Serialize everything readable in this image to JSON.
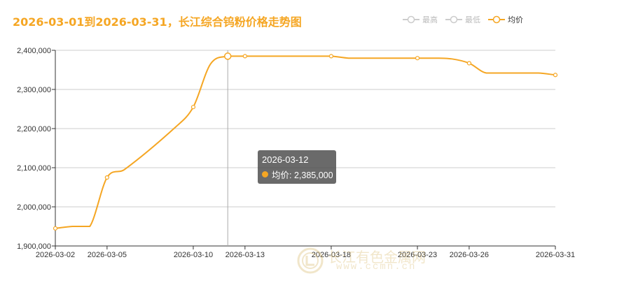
{
  "title": "2026-03-01到2026-03-31，长江综合钨粉价格走势图",
  "legend": [
    {
      "label": "最高",
      "icon": "legend-line-circle-icon",
      "color": "#cccccc",
      "active": false
    },
    {
      "label": "最低",
      "icon": "legend-line-circle-icon",
      "color": "#cccccc",
      "active": false
    },
    {
      "label": "均价",
      "icon": "legend-line-circle-icon",
      "color": "#f5a623",
      "active": true
    }
  ],
  "tooltip": {
    "date": "2026-03-12",
    "series_label": "均价: 2,385,000",
    "series_color": "#f5a623"
  },
  "watermark": {
    "name": "长江有色金属网",
    "url": "www.ccmn.cn"
  },
  "colors": {
    "title": "#f5a623",
    "series": "#f5a623",
    "grid": "#cccccc",
    "axis": "#333333"
  },
  "chart_data": {
    "type": "line",
    "title": "2026-03-01到2026-03-31，长江综合钨粉价格走势图",
    "xlabel": "",
    "ylabel": "",
    "x_ticks": [
      "2026-03-02",
      "2026-03-05",
      "2026-03-10",
      "2026-03-13",
      "2026-03-18",
      "2026-03-23",
      "2026-03-26",
      "2026-03-31"
    ],
    "y_ticks": [
      "1,900,000",
      "2,000,000",
      "2,100,000",
      "2,200,000",
      "2,300,000",
      "2,400,000"
    ],
    "ylim": [
      1900000,
      2400000
    ],
    "grid": true,
    "legend_position": "top-right",
    "highlighted_point": "2026-03-12",
    "series": [
      {
        "name": "均价",
        "points": [
          {
            "x": "2026-03-02",
            "y": 1945000
          },
          {
            "x": "2026-03-03",
            "y": 1950000
          },
          {
            "x": "2026-03-04",
            "y": 1950000
          },
          {
            "x": "2026-03-05",
            "y": 2075000
          },
          {
            "x": "2026-03-06",
            "y": 2095000
          },
          {
            "x": "2026-03-09",
            "y": 2205000
          },
          {
            "x": "2026-03-10",
            "y": 2255000
          },
          {
            "x": "2026-03-11",
            "y": 2365000
          },
          {
            "x": "2026-03-12",
            "y": 2385000
          },
          {
            "x": "2026-03-13",
            "y": 2385000
          },
          {
            "x": "2026-03-16",
            "y": 2385000
          },
          {
            "x": "2026-03-17",
            "y": 2385000
          },
          {
            "x": "2026-03-18",
            "y": 2385000
          },
          {
            "x": "2026-03-19",
            "y": 2380000
          },
          {
            "x": "2026-03-20",
            "y": 2380000
          },
          {
            "x": "2026-03-23",
            "y": 2380000
          },
          {
            "x": "2026-03-24",
            "y": 2380000
          },
          {
            "x": "2026-03-25",
            "y": 2378000
          },
          {
            "x": "2026-03-26",
            "y": 2367000
          },
          {
            "x": "2026-03-27",
            "y": 2342000
          },
          {
            "x": "2026-03-30",
            "y": 2342000
          },
          {
            "x": "2026-03-31",
            "y": 2337000
          }
        ]
      },
      {
        "name": "最高",
        "points": []
      },
      {
        "name": "最低",
        "points": []
      }
    ]
  }
}
